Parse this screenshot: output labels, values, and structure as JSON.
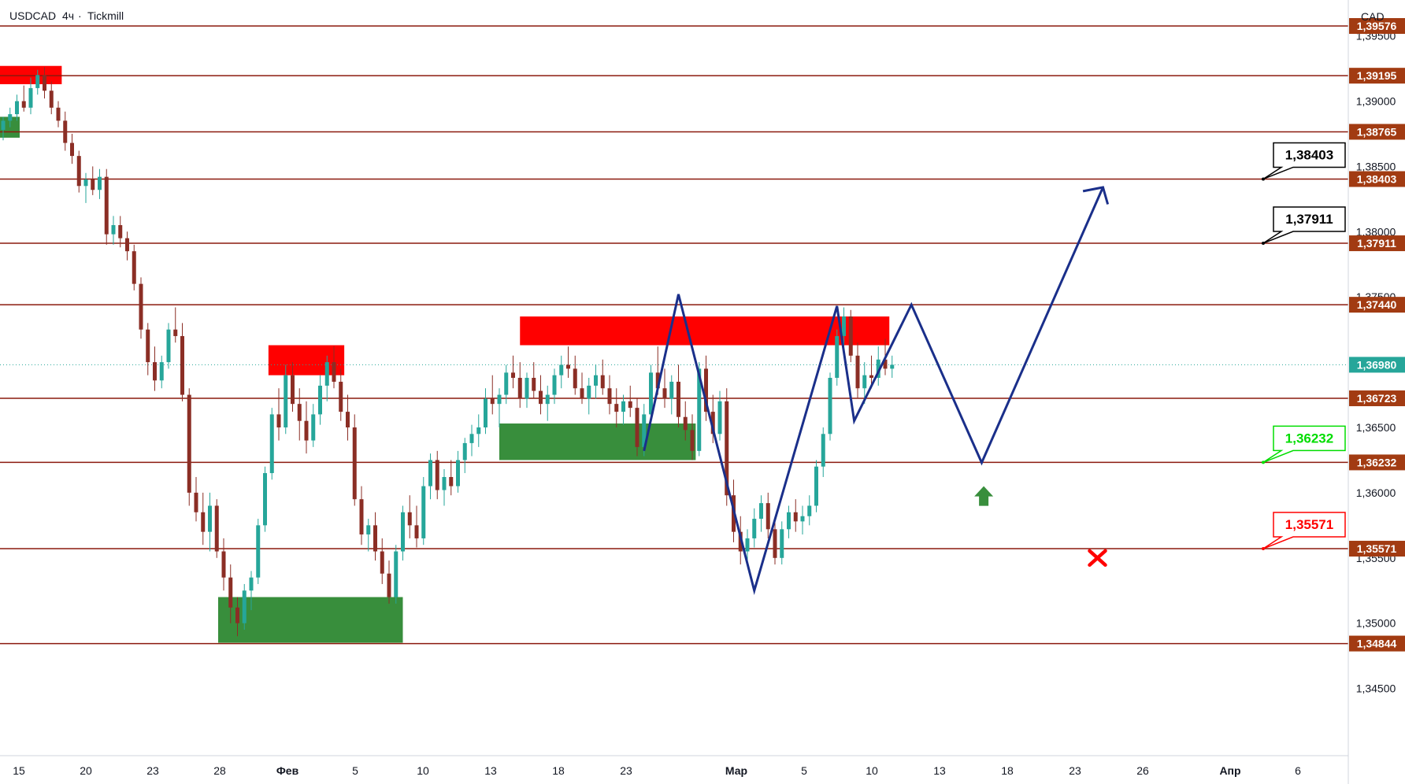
{
  "header": {
    "symbol": "USDCAD",
    "separator": "·",
    "interval": "4ч",
    "broker": "Tickmill",
    "currency_badge": "CAD"
  },
  "colors": {
    "up_candle": "#26a69a",
    "down_candle": "#8b2e25",
    "level_line": "#8b1a0e",
    "level_tag": "#a23b12",
    "current_tag": "#26a69a",
    "supply_zone": "#ff0000",
    "demand_zone": "#388e3c",
    "projection": "#1a2f8a",
    "target_green": "#00dd00",
    "stop_red": "#ff0000",
    "axis_border": "#d1d4dc"
  },
  "chart_data": {
    "type": "candlestick",
    "price_axis": {
      "ticks": [
        "1,39500",
        "1,39000",
        "1,38500",
        "1,38000",
        "1,37500",
        "1,37000",
        "1,36500",
        "1,36000",
        "1,35500",
        "1,35000",
        "1,34500"
      ],
      "tick_values": [
        1.395,
        1.39,
        1.385,
        1.38,
        1.375,
        1.37,
        1.365,
        1.36,
        1.355,
        1.35,
        1.345
      ],
      "ylim": [
        1.342,
        1.3965
      ]
    },
    "time_axis": {
      "labels": [
        "15",
        "20",
        "23",
        "28",
        "Фев",
        "5",
        "10",
        "13",
        "18",
        "23",
        "Мар",
        "5",
        "10",
        "13",
        "18",
        "23",
        "26",
        "Апр",
        "6"
      ],
      "bold": [
        false,
        false,
        false,
        false,
        true,
        false,
        false,
        false,
        false,
        false,
        true,
        false,
        false,
        false,
        false,
        false,
        false,
        true,
        false
      ]
    },
    "levels": [
      {
        "value": 1.39576,
        "label": "1,39576"
      },
      {
        "value": 1.39195,
        "label": "1,39195"
      },
      {
        "value": 1.38765,
        "label": "1,38765"
      },
      {
        "value": 1.38403,
        "label": "1,38403"
      },
      {
        "value": 1.37911,
        "label": "1,37911"
      },
      {
        "value": 1.3744,
        "label": "1,37440"
      },
      {
        "value": 1.36723,
        "label": "1,36723"
      },
      {
        "value": 1.36232,
        "label": "1,36232"
      },
      {
        "value": 1.35571,
        "label": "1,35571"
      },
      {
        "value": 1.34844,
        "label": "1,34844"
      }
    ],
    "current_price": {
      "value": 1.3698,
      "label": "1,36980"
    },
    "supply_zones": [
      {
        "t0": 0,
        "t1": 8.5,
        "p_top": 1.3927,
        "p_bot": 1.3913
      },
      {
        "t0": 38.5,
        "t1": 49.5,
        "p_top": 1.3713,
        "p_bot": 1.369
      },
      {
        "t0": 75,
        "t1": 128.6,
        "p_top": 1.3735,
        "p_bot": 1.3713
      }
    ],
    "demand_zones": [
      {
        "t0": 0,
        "t1": 2.4,
        "p_top": 1.3888,
        "p_bot": 1.3872
      },
      {
        "t0": 31.2,
        "t1": 58,
        "p_top": 1.352,
        "p_bot": 1.3485
      },
      {
        "t0": 72,
        "t1": 100.5,
        "p_top": 1.3653,
        "p_bot": 1.3625
      }
    ],
    "projection_path": [
      {
        "t": 93,
        "p": 1.3632
      },
      {
        "t": 98,
        "p": 1.3752
      },
      {
        "t": 109,
        "p": 1.3525
      },
      {
        "t": 121,
        "p": 1.3743
      },
      {
        "t": 123.5,
        "p": 1.3655
      },
      {
        "t": 131.8,
        "p": 1.3744
      },
      {
        "t": 142,
        "p": 1.3623
      },
      {
        "t": 159.6,
        "p": 1.3834
      }
    ],
    "arrowhead": [
      {
        "t": 156.7,
        "p": 1.3831
      },
      {
        "t": 159.6,
        "p": 1.3834
      },
      {
        "t": 160.3,
        "p": 1.3821
      }
    ],
    "callouts": [
      {
        "label": "1,38403",
        "value": 1.38403,
        "kind": "target"
      },
      {
        "label": "1,37911",
        "value": 1.37911,
        "kind": "target"
      },
      {
        "label": "1,36232",
        "value": 1.36232,
        "kind": "entry"
      },
      {
        "label": "1,35571",
        "value": 1.35571,
        "kind": "stop"
      }
    ],
    "up_arrow": {
      "t": 142.3,
      "p": 1.3605
    },
    "stop_mark": {
      "t": 158.8,
      "p": 1.355
    },
    "candles": [
      [
        1.3878,
        1.3888,
        1.387,
        1.3885
      ],
      [
        1.3885,
        1.3895,
        1.388,
        1.389
      ],
      [
        1.389,
        1.3905,
        1.3885,
        1.39
      ],
      [
        1.39,
        1.3912,
        1.3892,
        1.3895
      ],
      [
        1.3895,
        1.3918,
        1.389,
        1.391
      ],
      [
        1.391,
        1.3924,
        1.3905,
        1.392
      ],
      [
        1.392,
        1.3926,
        1.3902,
        1.3908
      ],
      [
        1.3908,
        1.3915,
        1.389,
        1.3895
      ],
      [
        1.3895,
        1.39,
        1.388,
        1.3885
      ],
      [
        1.3885,
        1.3892,
        1.3862,
        1.3868
      ],
      [
        1.3868,
        1.3875,
        1.3852,
        1.3858
      ],
      [
        1.3858,
        1.3862,
        1.383,
        1.3835
      ],
      [
        1.3835,
        1.3845,
        1.3822,
        1.384
      ],
      [
        1.384,
        1.385,
        1.3828,
        1.3832
      ],
      [
        1.3832,
        1.3848,
        1.3825,
        1.3842
      ],
      [
        1.3842,
        1.3848,
        1.379,
        1.3798
      ],
      [
        1.3798,
        1.3812,
        1.379,
        1.3805
      ],
      [
        1.3805,
        1.3812,
        1.3788,
        1.3795
      ],
      [
        1.3795,
        1.38,
        1.3778,
        1.3785
      ],
      [
        1.3785,
        1.379,
        1.3755,
        1.376
      ],
      [
        1.376,
        1.3765,
        1.3718,
        1.3725
      ],
      [
        1.3725,
        1.373,
        1.369,
        1.37
      ],
      [
        1.37,
        1.3712,
        1.3678,
        1.3686
      ],
      [
        1.3686,
        1.3705,
        1.368,
        1.37
      ],
      [
        1.37,
        1.373,
        1.3695,
        1.3725
      ],
      [
        1.3725,
        1.3742,
        1.3715,
        1.372
      ],
      [
        1.372,
        1.373,
        1.367,
        1.3675
      ],
      [
        1.3675,
        1.368,
        1.359,
        1.36
      ],
      [
        1.36,
        1.3612,
        1.3578,
        1.3585
      ],
      [
        1.3585,
        1.36,
        1.356,
        1.357
      ],
      [
        1.357,
        1.36,
        1.3555,
        1.359
      ],
      [
        1.359,
        1.3595,
        1.355,
        1.3555
      ],
      [
        1.3555,
        1.3565,
        1.3525,
        1.3535
      ],
      [
        1.3535,
        1.3545,
        1.35,
        1.3512
      ],
      [
        1.3512,
        1.352,
        1.349,
        1.35
      ],
      [
        1.35,
        1.353,
        1.3495,
        1.3525
      ],
      [
        1.3525,
        1.354,
        1.351,
        1.3535
      ],
      [
        1.3535,
        1.358,
        1.353,
        1.3575
      ],
      [
        1.3575,
        1.362,
        1.357,
        1.3615
      ],
      [
        1.3615,
        1.3665,
        1.361,
        1.366
      ],
      [
        1.366,
        1.368,
        1.364,
        1.365
      ],
      [
        1.365,
        1.3698,
        1.3645,
        1.369
      ],
      [
        1.369,
        1.37,
        1.3662,
        1.3668
      ],
      [
        1.3668,
        1.368,
        1.364,
        1.3655
      ],
      [
        1.3655,
        1.367,
        1.363,
        1.364
      ],
      [
        1.364,
        1.3668,
        1.3635,
        1.366
      ],
      [
        1.366,
        1.369,
        1.3652,
        1.3682
      ],
      [
        1.3682,
        1.3705,
        1.367,
        1.37
      ],
      [
        1.37,
        1.3712,
        1.368,
        1.3685
      ],
      [
        1.3685,
        1.3695,
        1.3655,
        1.3662
      ],
      [
        1.3662,
        1.3675,
        1.364,
        1.365
      ],
      [
        1.365,
        1.366,
        1.359,
        1.3595
      ],
      [
        1.3595,
        1.3605,
        1.356,
        1.3568
      ],
      [
        1.3568,
        1.358,
        1.3555,
        1.3575
      ],
      [
        1.3575,
        1.3585,
        1.3548,
        1.3555
      ],
      [
        1.3555,
        1.3565,
        1.353,
        1.3538
      ],
      [
        1.3538,
        1.3548,
        1.3515,
        1.352
      ],
      [
        1.352,
        1.356,
        1.3515,
        1.3555
      ],
      [
        1.3555,
        1.359,
        1.3548,
        1.3585
      ],
      [
        1.3585,
        1.3598,
        1.3565,
        1.3575
      ],
      [
        1.3575,
        1.359,
        1.3558,
        1.3565
      ],
      [
        1.3565,
        1.3612,
        1.356,
        1.3605
      ],
      [
        1.3605,
        1.363,
        1.3595,
        1.3625
      ],
      [
        1.3625,
        1.3632,
        1.3595,
        1.3602
      ],
      [
        1.3602,
        1.3618,
        1.359,
        1.3612
      ],
      [
        1.3612,
        1.3625,
        1.3598,
        1.3605
      ],
      [
        1.3605,
        1.3632,
        1.36,
        1.3625
      ],
      [
        1.3625,
        1.3642,
        1.3615,
        1.3638
      ],
      [
        1.3638,
        1.3652,
        1.3628,
        1.3645
      ],
      [
        1.3645,
        1.366,
        1.3635,
        1.365
      ],
      [
        1.365,
        1.368,
        1.3645,
        1.3672
      ],
      [
        1.3672,
        1.369,
        1.366,
        1.3668
      ],
      [
        1.3668,
        1.368,
        1.365,
        1.3675
      ],
      [
        1.3675,
        1.3698,
        1.3668,
        1.3692
      ],
      [
        1.3692,
        1.3705,
        1.368,
        1.3688
      ],
      [
        1.3688,
        1.37,
        1.3665,
        1.3672
      ],
      [
        1.3672,
        1.3692,
        1.3665,
        1.3688
      ],
      [
        1.3688,
        1.37,
        1.3672,
        1.3678
      ],
      [
        1.3678,
        1.369,
        1.366,
        1.3668
      ],
      [
        1.3668,
        1.3682,
        1.3655,
        1.3675
      ],
      [
        1.3675,
        1.3695,
        1.3668,
        1.369
      ],
      [
        1.369,
        1.3705,
        1.368,
        1.3698
      ],
      [
        1.3698,
        1.3712,
        1.3688,
        1.3695
      ],
      [
        1.3695,
        1.3705,
        1.3675,
        1.368
      ],
      [
        1.368,
        1.3692,
        1.3668,
        1.3672
      ],
      [
        1.3672,
        1.3688,
        1.366,
        1.3682
      ],
      [
        1.3682,
        1.3698,
        1.3672,
        1.369
      ],
      [
        1.369,
        1.3702,
        1.3675,
        1.368
      ],
      [
        1.368,
        1.369,
        1.366,
        1.3668
      ],
      [
        1.3668,
        1.368,
        1.365,
        1.3662
      ],
      [
        1.3662,
        1.3675,
        1.3652,
        1.367
      ],
      [
        1.367,
        1.3682,
        1.3658,
        1.3665
      ],
      [
        1.3665,
        1.3672,
        1.3628,
        1.3635
      ],
      [
        1.3635,
        1.3668,
        1.3628,
        1.366
      ],
      [
        1.366,
        1.3698,
        1.3655,
        1.3692
      ],
      [
        1.3692,
        1.3712,
        1.3675,
        1.368
      ],
      [
        1.368,
        1.3695,
        1.3665,
        1.3672
      ],
      [
        1.3672,
        1.369,
        1.366,
        1.3685
      ],
      [
        1.3685,
        1.3698,
        1.365,
        1.3658
      ],
      [
        1.3658,
        1.367,
        1.364,
        1.3648
      ],
      [
        1.3648,
        1.366,
        1.3625,
        1.3632
      ],
      [
        1.3632,
        1.37,
        1.3628,
        1.3695
      ],
      [
        1.3695,
        1.3705,
        1.3655,
        1.3662
      ],
      [
        1.3662,
        1.3675,
        1.3638,
        1.3645
      ],
      [
        1.3645,
        1.3678,
        1.364,
        1.367
      ],
      [
        1.367,
        1.368,
        1.359,
        1.3598
      ],
      [
        1.3598,
        1.361,
        1.3562,
        1.357
      ],
      [
        1.357,
        1.3582,
        1.3545,
        1.3555
      ],
      [
        1.3555,
        1.3572,
        1.3548,
        1.3565
      ],
      [
        1.3565,
        1.3588,
        1.3558,
        1.358
      ],
      [
        1.358,
        1.3598,
        1.357,
        1.3592
      ],
      [
        1.3592,
        1.36,
        1.3565,
        1.3572
      ],
      [
        1.3572,
        1.358,
        1.3545,
        1.355
      ],
      [
        1.355,
        1.3578,
        1.3545,
        1.3572
      ],
      [
        1.3572,
        1.359,
        1.3565,
        1.3585
      ],
      [
        1.3585,
        1.3595,
        1.357,
        1.3578
      ],
      [
        1.3578,
        1.359,
        1.3568,
        1.3582
      ],
      [
        1.3582,
        1.3598,
        1.3575,
        1.359
      ],
      [
        1.359,
        1.3625,
        1.3585,
        1.362
      ],
      [
        1.362,
        1.365,
        1.3612,
        1.3645
      ],
      [
        1.3645,
        1.3692,
        1.364,
        1.3688
      ],
      [
        1.3688,
        1.3725,
        1.3682,
        1.372
      ],
      [
        1.372,
        1.3742,
        1.3705,
        1.3735
      ],
      [
        1.3735,
        1.374,
        1.37,
        1.3705
      ],
      [
        1.3705,
        1.3715,
        1.3672,
        1.368
      ],
      [
        1.368,
        1.37,
        1.3668,
        1.369
      ],
      [
        1.369,
        1.3705,
        1.368,
        1.3688
      ],
      [
        1.3688,
        1.3712,
        1.3682,
        1.3702
      ],
      [
        1.3702,
        1.3718,
        1.369,
        1.3695
      ],
      [
        1.3695,
        1.3705,
        1.3688,
        1.3698
      ]
    ]
  }
}
